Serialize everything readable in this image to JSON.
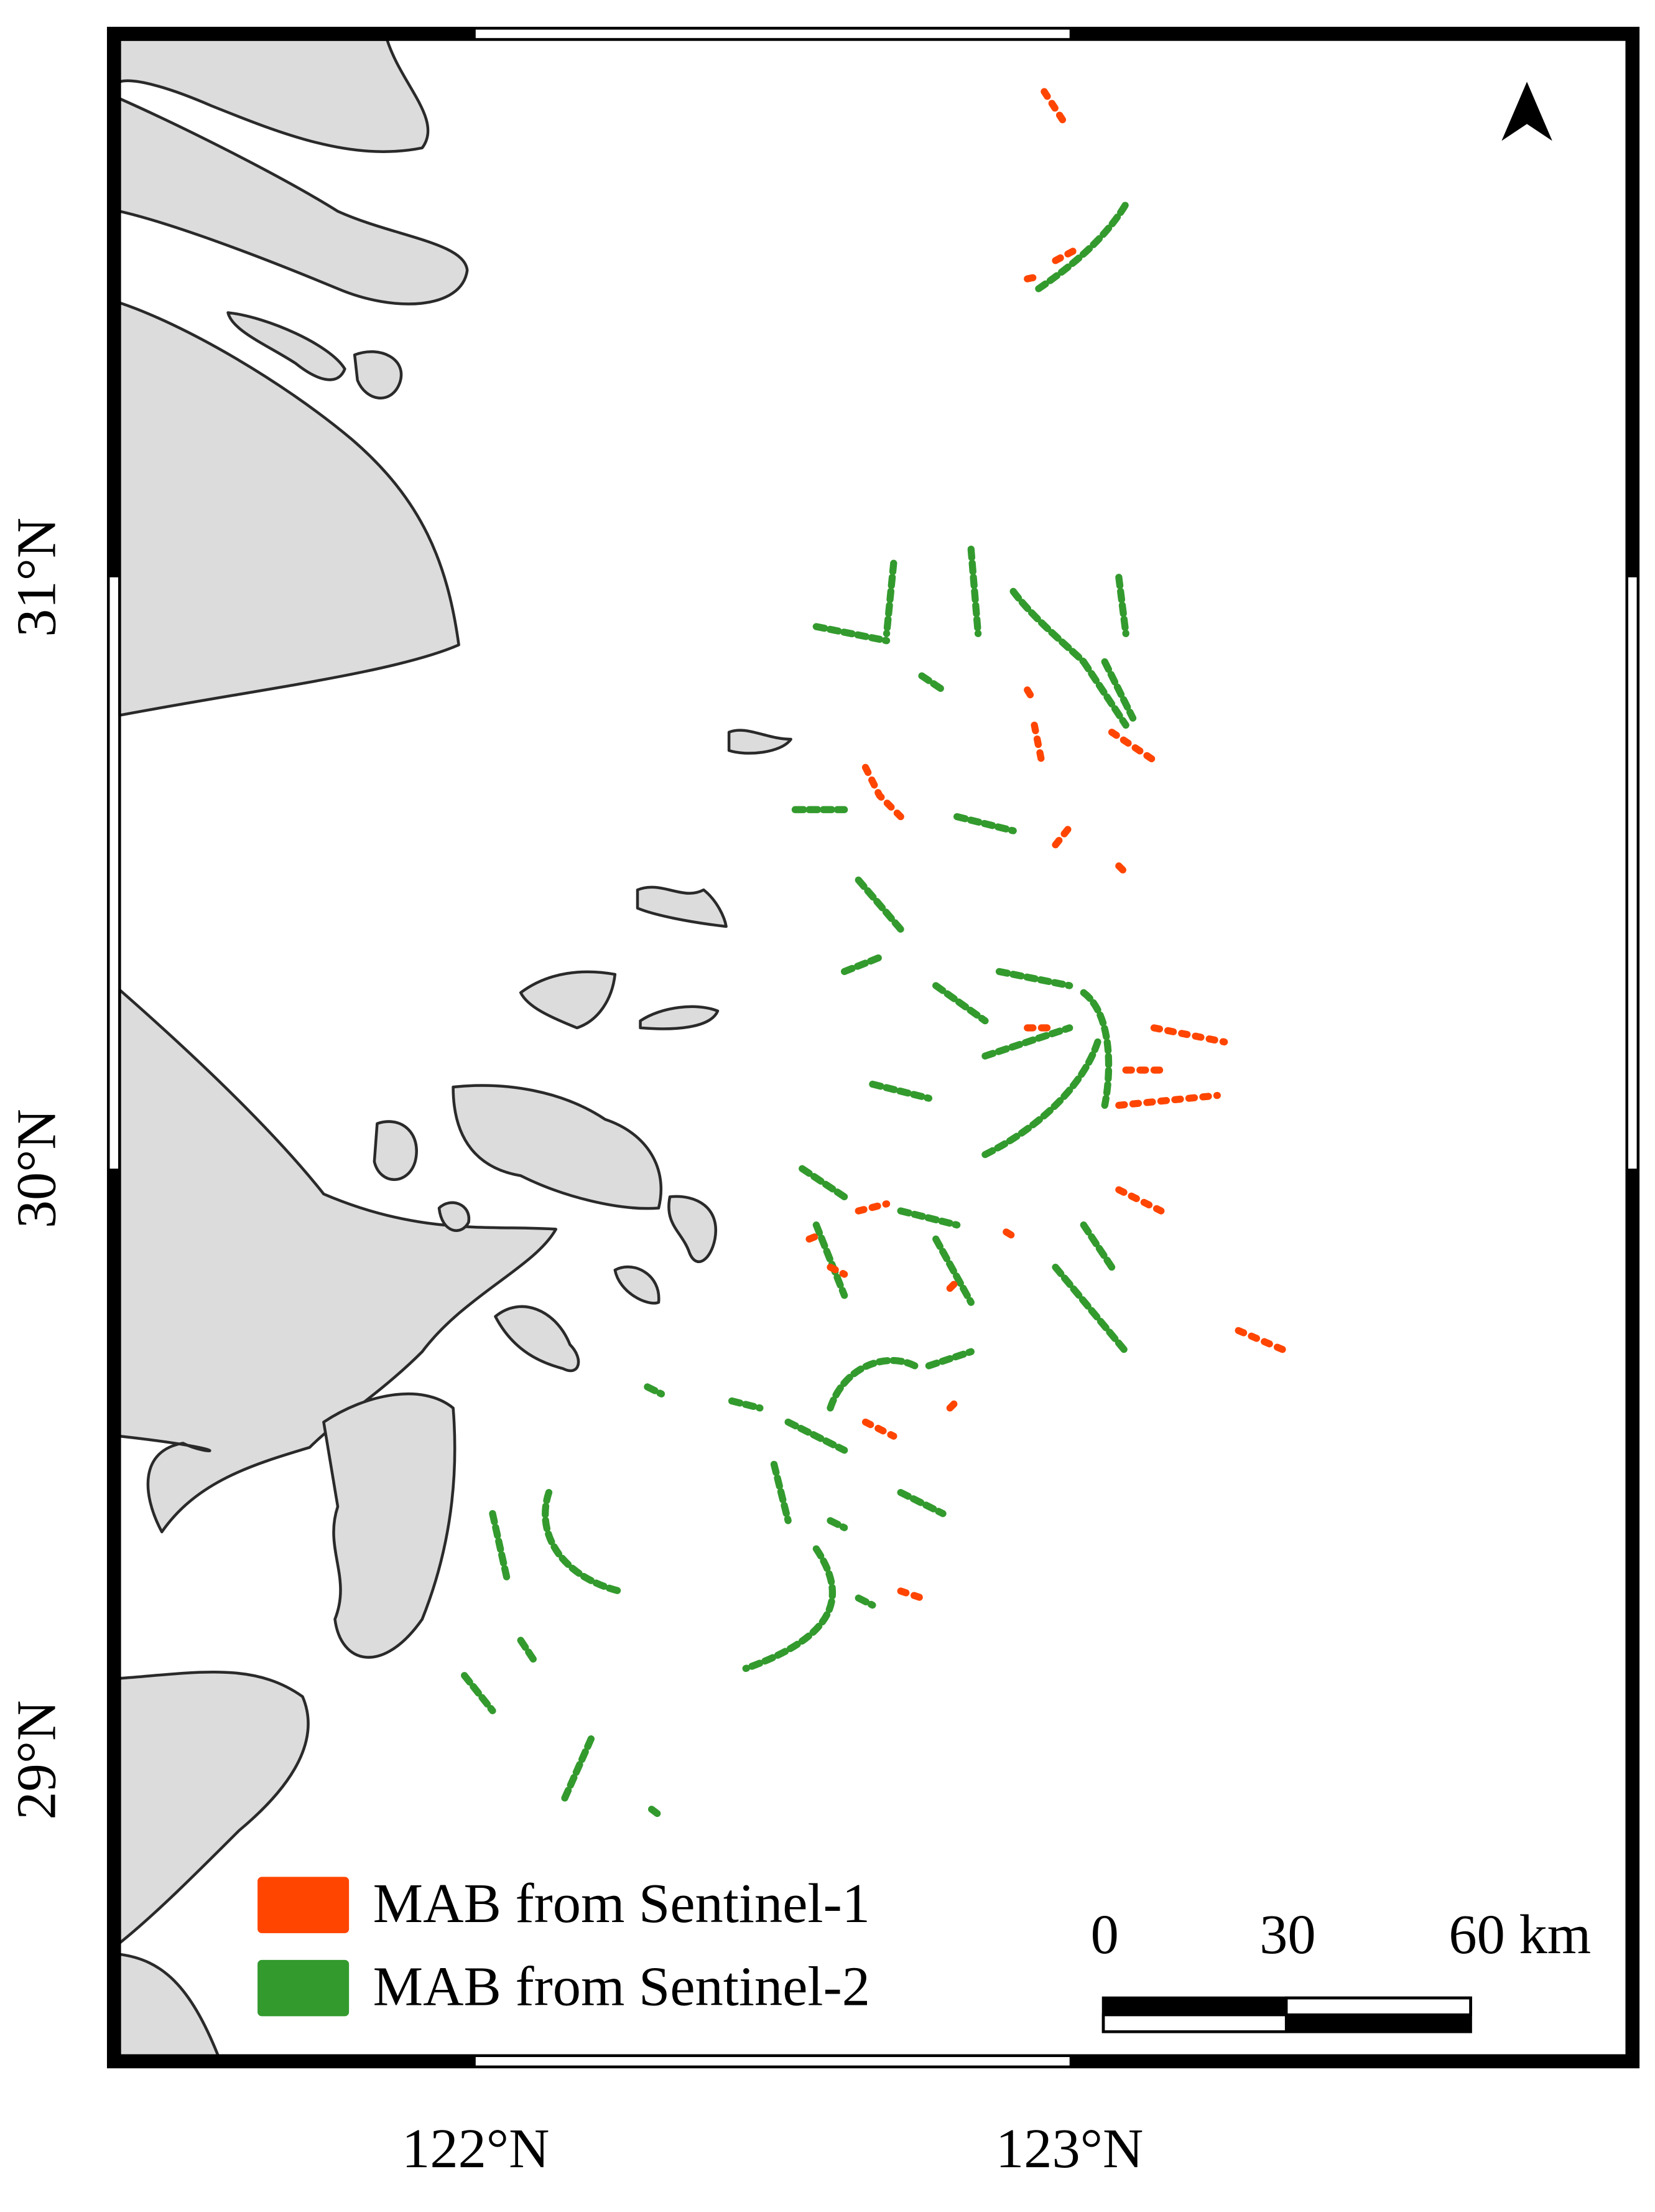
{
  "map": {
    "y_labels": [
      "31°N",
      "30°N",
      "29°N"
    ],
    "x_labels": [
      "122°N",
      "123°N"
    ],
    "legend": [
      {
        "label": "MAB from Sentinel-1",
        "color": "#ff4500"
      },
      {
        "label": "MAB from Sentinel-2",
        "color": "#339a2e"
      }
    ],
    "scale_bar": [
      "0",
      "30",
      "60 km"
    ]
  }
}
